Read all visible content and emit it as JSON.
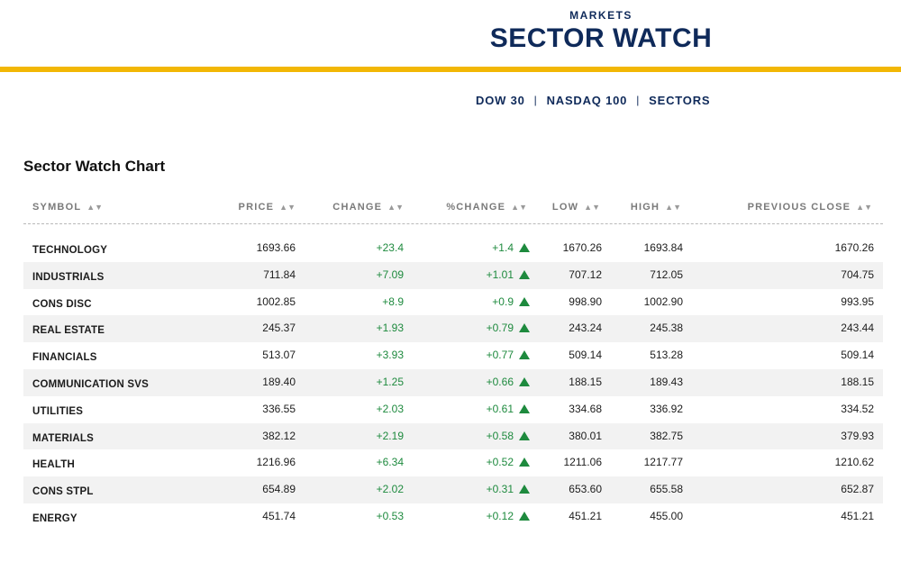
{
  "header": {
    "kicker": "MARKETS",
    "title": "SECTOR WATCH",
    "accent_color": "#f2b705",
    "brand_color": "#0f2a5a"
  },
  "subnav": [
    "DOW 30",
    "NASDAQ 100",
    "SECTORS"
  ],
  "section_title": "Sector Watch Chart",
  "table": {
    "columns": [
      "SYMBOL",
      "PRICE",
      "CHANGE",
      "%CHANGE",
      "LOW",
      "HIGH",
      "PREVIOUS CLOSE"
    ],
    "sort_icon": "sort-icon",
    "positive_color": "#1e8a3e",
    "rows": [
      [
        "TECHNOLOGY",
        "1693.66",
        "+23.4",
        "+1.4",
        "1670.26",
        "1693.84",
        "1670.26"
      ],
      [
        "INDUSTRIALS",
        "711.84",
        "+7.09",
        "+1.01",
        "707.12",
        "712.05",
        "704.75"
      ],
      [
        "CONS DISC",
        "1002.85",
        "+8.9",
        "+0.9",
        "998.90",
        "1002.90",
        "993.95"
      ],
      [
        "REAL ESTATE",
        "245.37",
        "+1.93",
        "+0.79",
        "243.24",
        "245.38",
        "243.44"
      ],
      [
        "FINANCIALS",
        "513.07",
        "+3.93",
        "+0.77",
        "509.14",
        "513.28",
        "509.14"
      ],
      [
        "COMMUNICATION SVS",
        "189.40",
        "+1.25",
        "+0.66",
        "188.15",
        "189.43",
        "188.15"
      ],
      [
        "UTILITIES",
        "336.55",
        "+2.03",
        "+0.61",
        "334.68",
        "336.92",
        "334.52"
      ],
      [
        "MATERIALS",
        "382.12",
        "+2.19",
        "+0.58",
        "380.01",
        "382.75",
        "379.93"
      ],
      [
        "HEALTH",
        "1216.96",
        "+6.34",
        "+0.52",
        "1211.06",
        "1217.77",
        "1210.62"
      ],
      [
        "CONS STPL",
        "654.89",
        "+2.02",
        "+0.31",
        "653.60",
        "655.58",
        "652.87"
      ],
      [
        "ENERGY",
        "451.74",
        "+0.53",
        "+0.12",
        "451.21",
        "455.00",
        "451.21"
      ]
    ]
  }
}
